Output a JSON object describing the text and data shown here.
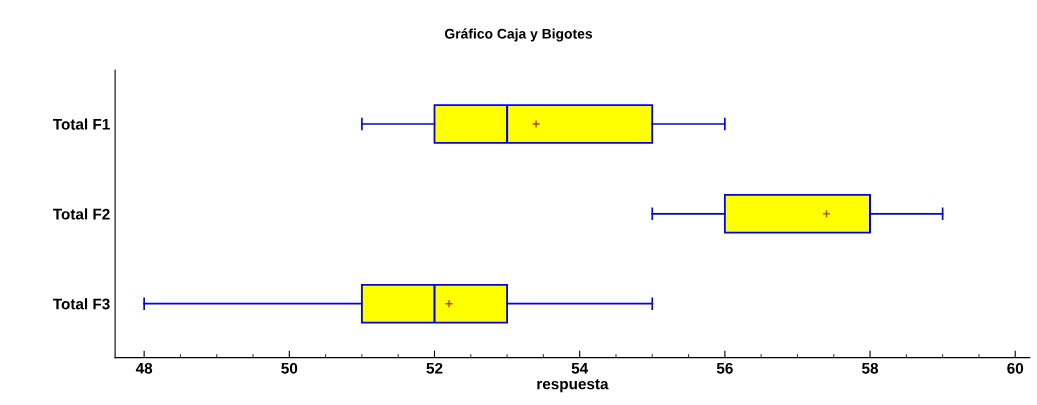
{
  "chart_data": {
    "type": "box",
    "orientation": "horizontal",
    "title": "Gráfico Caja y Bigotes",
    "xlabel": "respuesta",
    "categories": [
      "Total F1",
      "Total F2",
      "Total F3"
    ],
    "boxes": [
      {
        "low": 51,
        "q1": 52,
        "median": 53,
        "q3": 55,
        "high": 56,
        "mean": 53.4
      },
      {
        "low": 55,
        "q1": 56,
        "median": 58,
        "q3": 58,
        "high": 59,
        "mean": 57.4
      },
      {
        "low": 48,
        "q1": 51,
        "median": 52,
        "q3": 53,
        "high": 55,
        "mean": 52.2
      }
    ],
    "color": "#ffff00",
    "xlim": [
      47.6,
      60.2
    ],
    "xticks": [
      48,
      50,
      52,
      54,
      56,
      58,
      60
    ],
    "grid": false
  }
}
